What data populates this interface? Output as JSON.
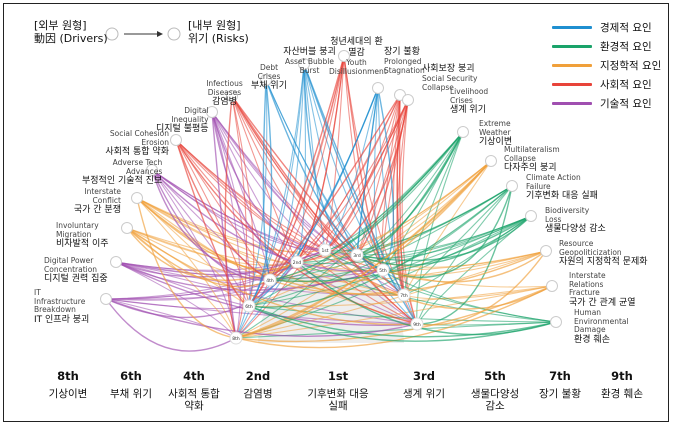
{
  "header": {
    "outer_label": "[외부 원형]",
    "outer_sub": "動因 (Drivers)",
    "inner_label": "[내부 원형]",
    "inner_sub": "위기 (Risks)"
  },
  "legend": [
    {
      "label": "경제적 요인",
      "color": "#1f8fd0"
    },
    {
      "label": "환경적 요인",
      "color": "#1aa36a"
    },
    {
      "label": "지정학적 요인",
      "color": "#f0a03a"
    },
    {
      "label": "사회적 요인",
      "color": "#e8443a"
    },
    {
      "label": "기술적 요인",
      "color": "#a04fb0"
    }
  ],
  "drivers": [
    {
      "en": "IT Infrastructure Breakdown",
      "ko": "IT 인프라 붕괴"
    },
    {
      "en": "Digital Power Concentration",
      "ko": "디지털 권력 집중"
    },
    {
      "en": "Involuntary Migration",
      "ko": "비자발적 이주"
    },
    {
      "en": "Interstate Conflict",
      "ko": "국가 간 분쟁"
    },
    {
      "en": "Adverse Tech Advances",
      "ko": "부정적인 기술적 진보"
    },
    {
      "en": "Social Cohesion Erosion",
      "ko": "사회적 통합 약화"
    },
    {
      "en": "Digital Inequality",
      "ko": "디지털 불평등"
    },
    {
      "en": "Infectious Diseases",
      "ko": "감염병"
    },
    {
      "en": "Debt Crises",
      "ko": "부채 위기"
    },
    {
      "en": "Asset Bubble Burst",
      "ko": "자산버블 붕괴"
    },
    {
      "en": "Youth Disillusionment",
      "ko": "청년세대의 환멸감"
    },
    {
      "en": "Prolonged Stagnation",
      "ko": "장기 불황"
    },
    {
      "en": "Social Security Collapse",
      "ko": "사회보장 붕괴"
    },
    {
      "en": "Livelihood Crises",
      "ko": "생계 위기"
    },
    {
      "en": "Extreme Weather",
      "ko": "기상이변"
    },
    {
      "en": "Multilateralism Collapse",
      "ko": "다자주의 붕괴"
    },
    {
      "en": "Climate Action Failure",
      "ko": "기후변화 대응 실패"
    },
    {
      "en": "Biodiversity Loss",
      "ko": "생물다양성 감소"
    },
    {
      "en": "Resource Geopoliticization",
      "ko": "자원의 지정학적 문제화"
    },
    {
      "en": "Interstate Relations Fracture",
      "ko": "국가 간 관계 균열"
    },
    {
      "en": "Human Environmental Damage",
      "ko": "환경 훼손"
    }
  ],
  "ranks": [
    {
      "rank": "8th",
      "name": "기상이변"
    },
    {
      "rank": "6th",
      "name": "부채 위기"
    },
    {
      "rank": "4th",
      "name": "사회적 통합 약화"
    },
    {
      "rank": "2nd",
      "name": "감염병"
    },
    {
      "rank": "1st",
      "name": "기후변화 대응 실패"
    },
    {
      "rank": "3rd",
      "name": "생계 위기"
    },
    {
      "rank": "5th",
      "name": "생물다양성 감소"
    },
    {
      "rank": "7th",
      "name": "장기 불황"
    },
    {
      "rank": "9th",
      "name": "환경 훼손"
    }
  ],
  "inner_nodes": [
    "8th",
    "6th",
    "4th",
    "2nd",
    "1st",
    "3rd",
    "5th",
    "7th",
    "9th"
  ]
}
